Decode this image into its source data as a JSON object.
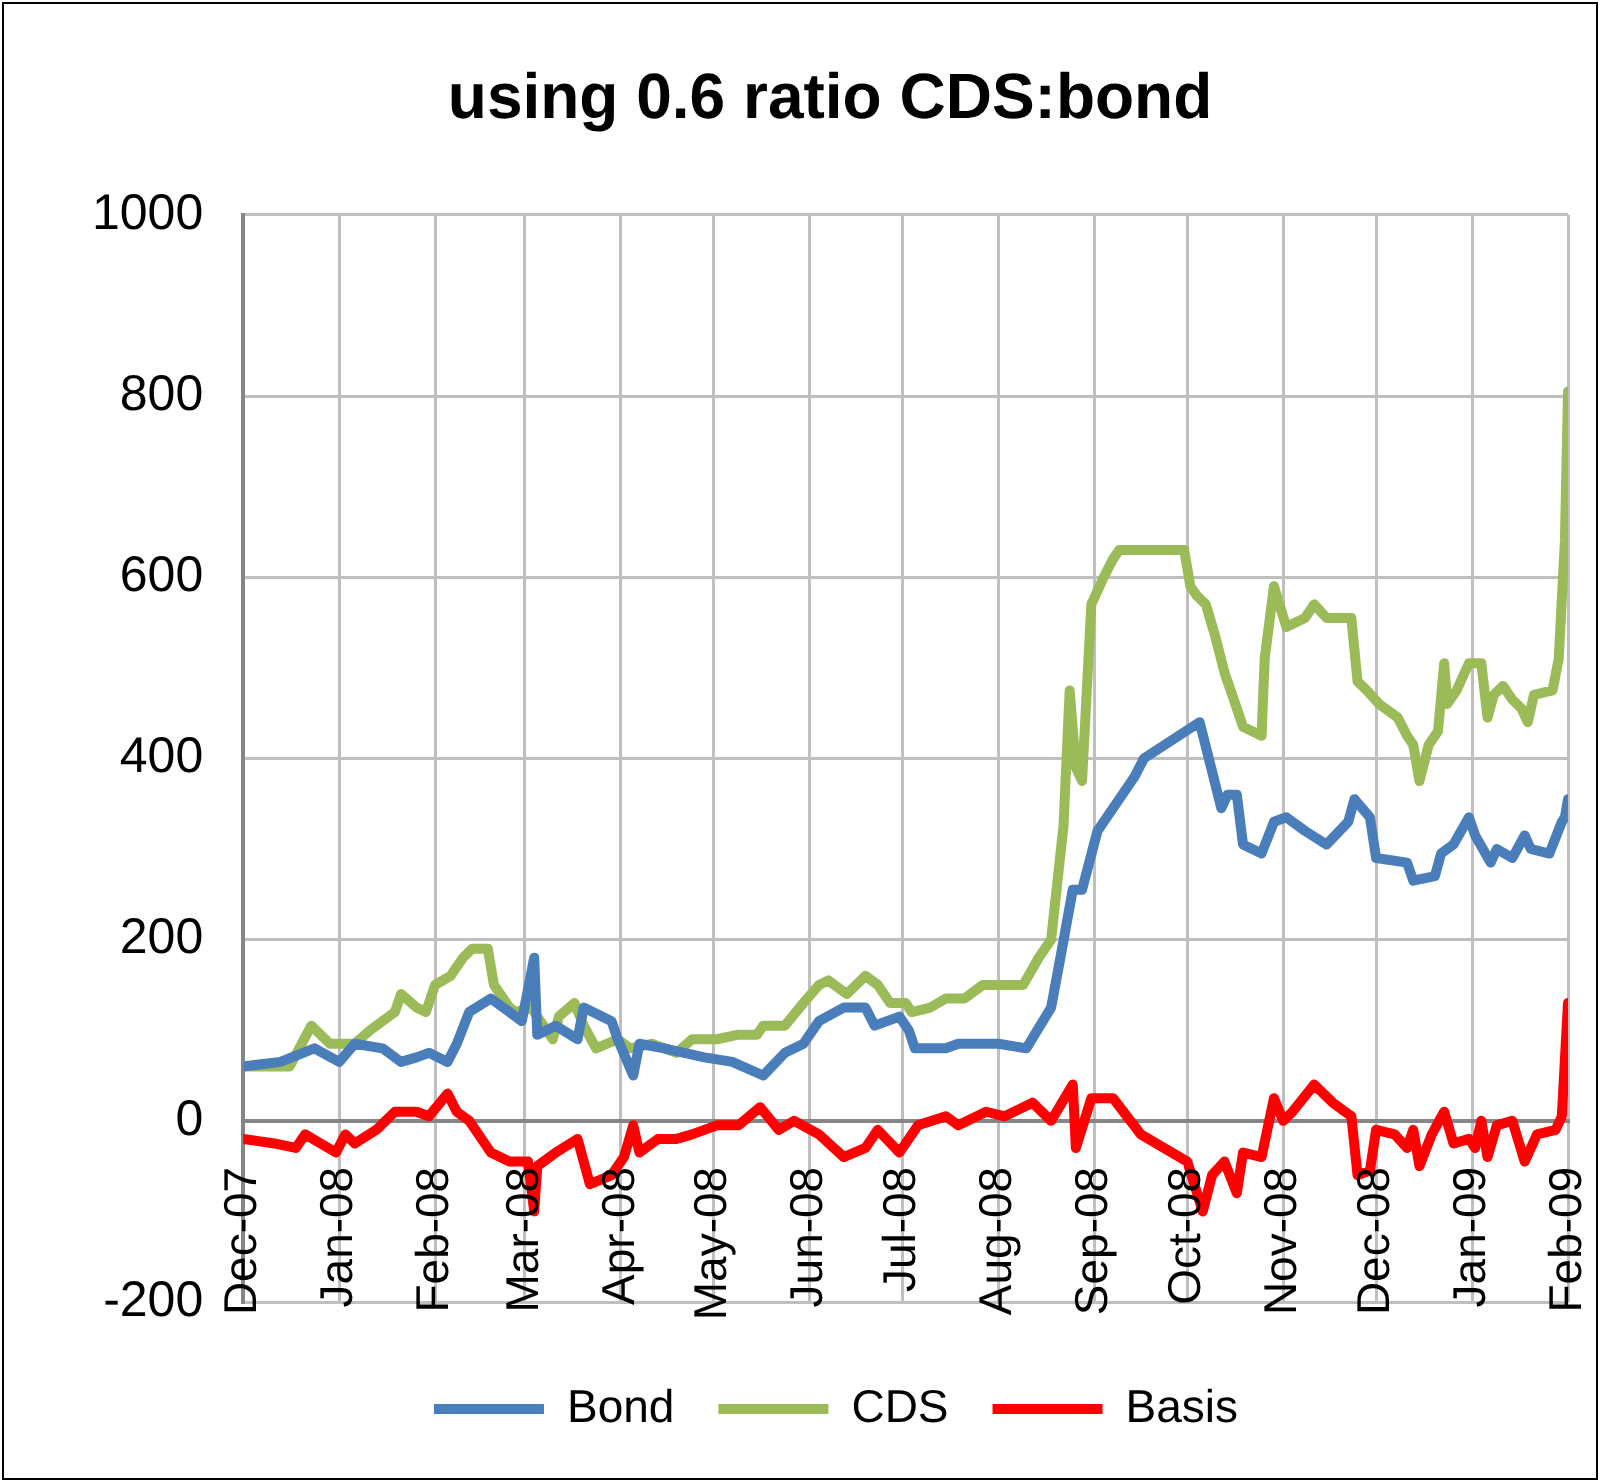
{
  "chart_data": {
    "type": "line",
    "title": "using 0.6 ratio CDS:bond",
    "xlim": [
      "2007-12-01",
      "2009-02-01"
    ],
    "xticks": [
      {
        "value": "2007-12-01",
        "label": "Dec-07"
      },
      {
        "value": "2008-01-01",
        "label": "Jan-08"
      },
      {
        "value": "2008-02-01",
        "label": "Feb-08"
      },
      {
        "value": "2008-03-01",
        "label": "Mar-08"
      },
      {
        "value": "2008-04-01",
        "label": "Apr-08"
      },
      {
        "value": "2008-05-01",
        "label": "May-08"
      },
      {
        "value": "2008-06-01",
        "label": "Jun-08"
      },
      {
        "value": "2008-07-01",
        "label": "Jul-08"
      },
      {
        "value": "2008-08-01",
        "label": "Aug-08"
      },
      {
        "value": "2008-09-01",
        "label": "Sep-08"
      },
      {
        "value": "2008-10-01",
        "label": "Oct-08"
      },
      {
        "value": "2008-11-01",
        "label": "Nov-08"
      },
      {
        "value": "2008-12-01",
        "label": "Dec-08"
      },
      {
        "value": "2009-01-01",
        "label": "Jan-09"
      },
      {
        "value": "2009-02-01",
        "label": "Feb-09"
      }
    ],
    "ylim": [
      -200,
      1000
    ],
    "yticks": [
      -200,
      0,
      200,
      400,
      600,
      800,
      1000
    ],
    "grid": true,
    "legend": "bottom",
    "marker": "none",
    "series": [
      {
        "name": "Bond",
        "color": "#4a7ebb",
        "x": [
          "2007-12-01",
          "2007-12-13",
          "2007-12-24",
          "2008-01-01",
          "2008-01-06",
          "2008-01-15",
          "2008-01-21",
          "2008-01-26",
          "2008-01-30",
          "2008-02-05",
          "2008-02-08",
          "2008-02-12",
          "2008-02-19",
          "2008-02-25",
          "2008-02-29",
          "2008-03-04",
          "2008-03-05",
          "2008-03-11",
          "2008-03-18",
          "2008-03-20",
          "2008-03-29",
          "2008-03-31",
          "2008-04-05",
          "2008-04-07",
          "2008-04-15",
          "2008-04-28",
          "2008-05-07",
          "2008-05-17",
          "2008-05-24",
          "2008-05-30",
          "2008-06-04",
          "2008-06-12",
          "2008-06-19",
          "2008-06-22",
          "2008-06-30",
          "2008-07-03",
          "2008-07-05",
          "2008-07-15",
          "2008-07-19",
          "2008-08-01",
          "2008-08-10",
          "2008-08-18",
          "2008-08-21",
          "2008-08-25",
          "2008-08-28",
          "2008-09-02",
          "2008-09-07",
          "2008-09-14",
          "2008-09-17",
          "2008-10-05",
          "2008-10-12",
          "2008-10-14",
          "2008-10-17",
          "2008-10-19",
          "2008-10-25",
          "2008-10-29",
          "2008-11-02",
          "2008-11-08",
          "2008-11-15",
          "2008-11-22",
          "2008-11-24",
          "2008-11-29",
          "2008-12-01",
          "2008-12-11",
          "2008-12-13",
          "2008-12-20",
          "2008-12-22",
          "2008-12-26",
          "2008-12-31",
          "2009-01-02",
          "2009-01-07",
          "2009-01-09",
          "2009-01-14",
          "2009-01-18",
          "2009-01-20",
          "2009-01-26",
          "2009-01-30",
          "2009-01-31",
          "2009-02-01"
        ],
        "values": [
          60,
          65,
          80,
          65,
          85,
          80,
          65,
          70,
          75,
          65,
          85,
          120,
          135,
          120,
          110,
          180,
          95,
          105,
          90,
          125,
          110,
          90,
          50,
          85,
          80,
          70,
          65,
          50,
          75,
          85,
          110,
          125,
          125,
          105,
          115,
          100,
          80,
          80,
          85,
          85,
          80,
          125,
          180,
          255,
          255,
          320,
          345,
          380,
          400,
          440,
          345,
          360,
          360,
          305,
          295,
          330,
          335,
          320,
          305,
          330,
          355,
          335,
          290,
          285,
          265,
          270,
          295,
          305,
          335,
          315,
          285,
          300,
          290,
          315,
          300,
          295,
          330,
          335,
          355
        ]
      },
      {
        "name": "CDS",
        "color": "#9bbb59",
        "x": [
          "2007-12-01",
          "2007-12-16",
          "2007-12-23",
          "2007-12-29",
          "2008-01-06",
          "2008-01-11",
          "2008-01-19",
          "2008-01-21",
          "2008-01-26",
          "2008-01-29",
          "2008-02-01",
          "2008-02-06",
          "2008-02-10",
          "2008-02-13",
          "2008-02-18",
          "2008-02-20",
          "2008-02-25",
          "2008-02-27",
          "2008-03-03",
          "2008-03-06",
          "2008-03-10",
          "2008-03-12",
          "2008-03-17",
          "2008-03-20",
          "2008-03-24",
          "2008-03-31",
          "2008-04-04",
          "2008-04-11",
          "2008-04-19",
          "2008-04-24",
          "2008-05-02",
          "2008-05-09",
          "2008-05-15",
          "2008-05-17",
          "2008-05-24",
          "2008-05-30",
          "2008-06-04",
          "2008-06-07",
          "2008-06-13",
          "2008-06-19",
          "2008-06-23",
          "2008-06-27",
          "2008-07-02",
          "2008-07-04",
          "2008-07-10",
          "2008-07-15",
          "2008-07-21",
          "2008-07-27",
          "2008-08-01",
          "2008-08-09",
          "2008-08-14",
          "2008-08-18",
          "2008-08-22",
          "2008-08-24",
          "2008-08-26",
          "2008-08-28",
          "2008-08-31",
          "2008-09-04",
          "2008-09-07",
          "2008-09-09",
          "2008-09-30",
          "2008-10-02",
          "2008-10-04",
          "2008-10-07",
          "2008-10-10",
          "2008-10-13",
          "2008-10-15",
          "2008-10-19",
          "2008-10-25",
          "2008-10-26",
          "2008-10-29",
          "2008-11-02",
          "2008-11-08",
          "2008-11-11",
          "2008-11-15",
          "2008-11-23",
          "2008-11-25",
          "2008-11-28",
          "2008-12-02",
          "2008-12-08",
          "2008-12-11",
          "2008-12-13",
          "2008-12-15",
          "2008-12-18",
          "2008-12-21",
          "2008-12-23",
          "2008-12-24",
          "2008-12-27",
          "2008-12-31",
          "2009-01-04",
          "2009-01-06",
          "2009-01-08",
          "2009-01-11",
          "2009-01-14",
          "2009-01-17",
          "2009-01-19",
          "2009-01-21",
          "2009-01-27",
          "2009-01-29",
          "2009-01-31",
          "2009-02-01"
        ],
        "values": [
          60,
          60,
          105,
          85,
          85,
          100,
          120,
          140,
          125,
          120,
          150,
          160,
          180,
          190,
          190,
          150,
          125,
          120,
          125,
          110,
          90,
          115,
          130,
          105,
          80,
          90,
          80,
          85,
          75,
          90,
          90,
          95,
          95,
          105,
          105,
          130,
          150,
          155,
          140,
          160,
          150,
          130,
          130,
          120,
          125,
          135,
          135,
          150,
          150,
          150,
          180,
          200,
          325,
          475,
          390,
          375,
          570,
          600,
          620,
          630,
          630,
          590,
          580,
          570,
          535,
          495,
          475,
          435,
          425,
          510,
          590,
          545,
          555,
          570,
          555,
          555,
          485,
          475,
          460,
          445,
          425,
          415,
          375,
          415,
          430,
          505,
          460,
          475,
          505,
          505,
          445,
          470,
          480,
          465,
          455,
          440,
          470,
          475,
          510,
          640,
          805
        ]
      },
      {
        "name": "Basis",
        "color": "#ff0000",
        "x": [
          "2007-12-01",
          "2007-12-11",
          "2007-12-18",
          "2007-12-21",
          "2007-12-26",
          "2007-12-31",
          "2008-01-03",
          "2008-01-06",
          "2008-01-13",
          "2008-01-19",
          "2008-01-26",
          "2008-01-30",
          "2008-02-05",
          "2008-02-08",
          "2008-02-12",
          "2008-02-19",
          "2008-02-25",
          "2008-03-02",
          "2008-03-04",
          "2008-03-05",
          "2008-03-11",
          "2008-03-18",
          "2008-03-22",
          "2008-03-29",
          "2008-04-02",
          "2008-04-05",
          "2008-04-07",
          "2008-04-13",
          "2008-04-19",
          "2008-04-24",
          "2008-05-02",
          "2008-05-09",
          "2008-05-16",
          "2008-05-22",
          "2008-05-27",
          "2008-06-04",
          "2008-06-12",
          "2008-06-19",
          "2008-06-23",
          "2008-06-30",
          "2008-07-06",
          "2008-07-15",
          "2008-07-19",
          "2008-07-28",
          "2008-08-03",
          "2008-08-12",
          "2008-08-18",
          "2008-08-25",
          "2008-08-26",
          "2008-08-31",
          "2008-09-07",
          "2008-09-16",
          "2008-10-01",
          "2008-10-06",
          "2008-10-09",
          "2008-10-13",
          "2008-10-17",
          "2008-10-19",
          "2008-10-25",
          "2008-10-29",
          "2008-11-01",
          "2008-11-04",
          "2008-11-11",
          "2008-11-17",
          "2008-11-23",
          "2008-11-25",
          "2008-11-29",
          "2008-12-01",
          "2008-12-07",
          "2008-12-11",
          "2008-12-13",
          "2008-12-15",
          "2008-12-19",
          "2008-12-23",
          "2008-12-26",
          "2008-12-31",
          "2009-01-02",
          "2009-01-04",
          "2009-01-06",
          "2009-01-09",
          "2009-01-14",
          "2009-01-18",
          "2009-01-22",
          "2009-01-28",
          "2009-01-30",
          "2009-02-01"
        ],
        "values": [
          -20,
          -25,
          -30,
          -15,
          -25,
          -35,
          -15,
          -25,
          -10,
          10,
          10,
          5,
          30,
          10,
          0,
          -35,
          -45,
          -45,
          -100,
          -50,
          -35,
          -20,
          -70,
          -60,
          -40,
          -5,
          -35,
          -20,
          -20,
          -15,
          -5,
          -5,
          15,
          -10,
          0,
          -15,
          -40,
          -30,
          -10,
          -35,
          -5,
          5,
          -5,
          10,
          5,
          20,
          0,
          40,
          -30,
          25,
          25,
          -15,
          -45,
          -100,
          -60,
          -45,
          -80,
          -35,
          -40,
          25,
          0,
          10,
          40,
          20,
          5,
          -60,
          -55,
          -10,
          -15,
          -30,
          -10,
          -50,
          -15,
          10,
          -25,
          -20,
          -30,
          0,
          -40,
          -5,
          0,
          -45,
          -15,
          -10,
          5,
          130
        ]
      }
    ]
  }
}
